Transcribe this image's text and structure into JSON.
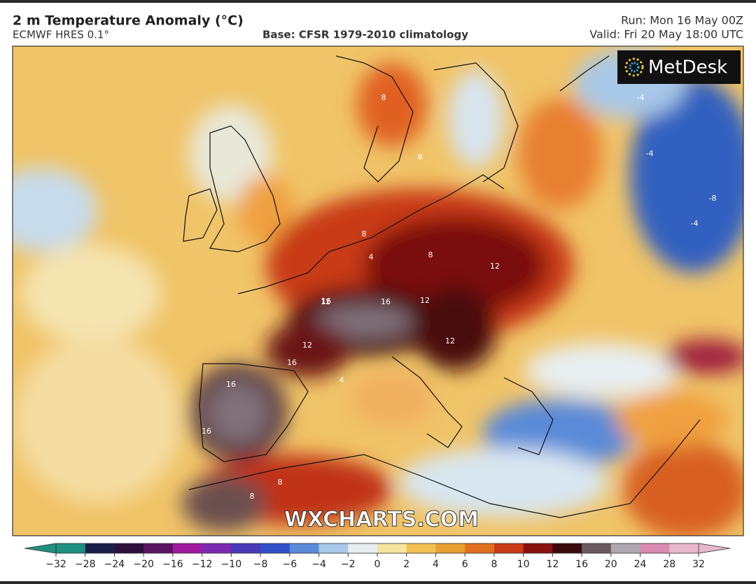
{
  "header": {
    "title": "2 m Temperature Anomaly (°C)",
    "model": "ECMWF HRES 0.1°",
    "base": "Base: CFSR 1979-2010 climatology",
    "run": "Run: Mon 16 May 00Z",
    "valid": "Valid: Fri 20 May 18:00 UTC"
  },
  "map": {
    "logo": "MetDesk",
    "watermark": "WXCHARTS.COM",
    "contour_labels": [
      "8",
      "8",
      "4",
      "8",
      "8",
      "12",
      "12",
      "16",
      "12",
      "12",
      "16",
      "16",
      "12",
      "16",
      "16",
      "-4",
      "-4",
      "-8",
      "-4",
      "4",
      "8",
      "8"
    ]
  },
  "colorbar": {
    "ticks": [
      {
        "value": -32,
        "label": "−32"
      },
      {
        "value": -28,
        "label": "−28"
      },
      {
        "value": -24,
        "label": "−24"
      },
      {
        "value": -20,
        "label": "−20"
      },
      {
        "value": -16,
        "label": "−16"
      },
      {
        "value": -12,
        "label": "−12"
      },
      {
        "value": -10,
        "label": "−10"
      },
      {
        "value": -8,
        "label": "−8"
      },
      {
        "value": -6,
        "label": "−6"
      },
      {
        "value": -4,
        "label": "−4"
      },
      {
        "value": -2,
        "label": "−2"
      },
      0,
      2,
      4,
      6,
      8,
      10,
      12,
      16,
      20,
      24,
      28,
      32
    ],
    "colors": [
      "#1f8f7f",
      "#1a1f4a",
      "#2c0f3a",
      "#5a1460",
      "#a01aa0",
      "#7a2ab0",
      "#4a3ab8",
      "#3050c8",
      "#5a8ad8",
      "#a8c8e8",
      "#e8eef0",
      "#f4e4a0",
      "#f0c050",
      "#e8a030",
      "#e07020",
      "#c83a18",
      "#8a1010",
      "#3a0a0a",
      "#6a5a60",
      "#b0a8b0",
      "#d88ab0",
      "#e8b8cc"
    ]
  }
}
